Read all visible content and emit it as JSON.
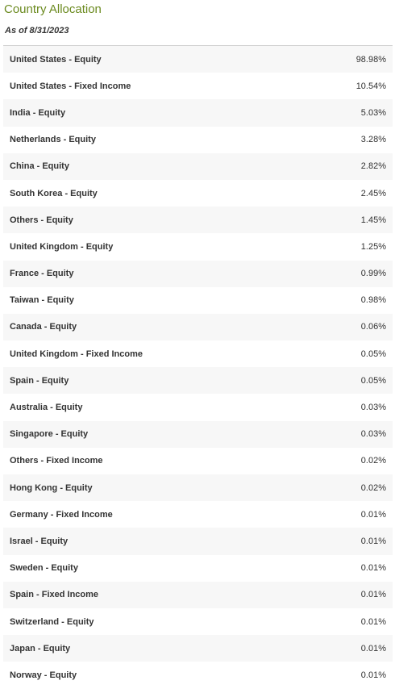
{
  "header": {
    "title": "Country Allocation",
    "as_of": "As of 8/31/2023"
  },
  "rows": [
    {
      "label": "United States - Equity",
      "value": "98.98%"
    },
    {
      "label": "United States - Fixed Income",
      "value": "10.54%"
    },
    {
      "label": "India - Equity",
      "value": "5.03%"
    },
    {
      "label": "Netherlands - Equity",
      "value": "3.28%"
    },
    {
      "label": "China - Equity",
      "value": "2.82%"
    },
    {
      "label": "South Korea - Equity",
      "value": "2.45%"
    },
    {
      "label": "Others - Equity",
      "value": "1.45%"
    },
    {
      "label": "United Kingdom - Equity",
      "value": "1.25%"
    },
    {
      "label": "France - Equity",
      "value": "0.99%"
    },
    {
      "label": "Taiwan - Equity",
      "value": "0.98%"
    },
    {
      "label": "Canada - Equity",
      "value": "0.06%"
    },
    {
      "label": "United Kingdom - Fixed Income",
      "value": "0.05%"
    },
    {
      "label": "Spain - Equity",
      "value": "0.05%"
    },
    {
      "label": "Australia - Equity",
      "value": "0.03%"
    },
    {
      "label": "Singapore - Equity",
      "value": "0.03%"
    },
    {
      "label": "Others - Fixed Income",
      "value": "0.02%"
    },
    {
      "label": "Hong Kong - Equity",
      "value": "0.02%"
    },
    {
      "label": "Germany - Fixed Income",
      "value": "0.01%"
    },
    {
      "label": "Israel - Equity",
      "value": "0.01%"
    },
    {
      "label": "Sweden - Equity",
      "value": "0.01%"
    },
    {
      "label": "Spain - Fixed Income",
      "value": "0.01%"
    },
    {
      "label": "Switzerland - Equity",
      "value": "0.01%"
    },
    {
      "label": "Japan - Equity",
      "value": "0.01%"
    },
    {
      "label": "Norway - Equity",
      "value": "0.01%"
    }
  ]
}
